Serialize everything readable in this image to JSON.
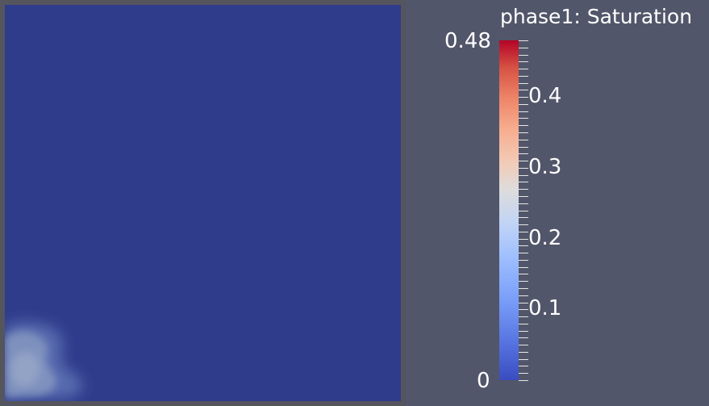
{
  "legend": {
    "title": "phase1: Saturation",
    "range_min": 0,
    "range_max": 0.48,
    "max_label": "0.48",
    "min_label": "0",
    "tick_labels": [
      {
        "label": "0.4",
        "value": 0.4
      },
      {
        "label": "0.3",
        "value": 0.3
      },
      {
        "label": "0.2",
        "value": 0.2
      },
      {
        "label": "0.1",
        "value": 0.1
      }
    ],
    "colormap": "cool-to-warm",
    "colors": {
      "low": "#3a4cc0",
      "mid": "#dddcdc",
      "high": "#b40426"
    }
  },
  "domain": {
    "background_color": "#2f3c8c",
    "frame_color": "#55555d"
  },
  "view": {
    "background_color": "#52566a"
  }
}
